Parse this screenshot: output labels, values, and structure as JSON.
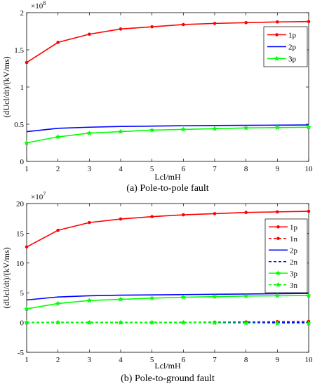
{
  "chart_data": [
    {
      "type": "line",
      "caption": "(a)  Pole-to-pole fault",
      "xlabel": "Lcl/mH",
      "ylabel": "(dUcl/dt)/(kV/ms)",
      "scale_base": "×10",
      "scale_exp": "8",
      "x": [
        1,
        2,
        3,
        4,
        5,
        6,
        7,
        8,
        9,
        10
      ],
      "xlim": [
        1,
        10
      ],
      "ylim": [
        0,
        2
      ],
      "xticks": [
        "1",
        "2",
        "3",
        "4",
        "5",
        "6",
        "7",
        "8",
        "9",
        "10"
      ],
      "yticks": [
        "0",
        "0.5",
        "1",
        "1.5",
        "2"
      ],
      "ytick_values": [
        0,
        0.5,
        1,
        1.5,
        2
      ],
      "grid": false,
      "legend_position": "top-right",
      "series": [
        {
          "name": "1p",
          "color": "#ff0000",
          "marker": "dot",
          "dash": "solid",
          "values": [
            1.33,
            1.6,
            1.71,
            1.78,
            1.81,
            1.84,
            1.855,
            1.865,
            1.875,
            1.88
          ]
        },
        {
          "name": "2p",
          "color": "#0000ff",
          "marker": "none",
          "dash": "solid",
          "values": [
            0.4,
            0.445,
            0.46,
            0.47,
            0.475,
            0.48,
            0.483,
            0.485,
            0.488,
            0.49
          ]
        },
        {
          "name": "3p",
          "color": "#00ff00",
          "marker": "star",
          "dash": "solid",
          "values": [
            0.25,
            0.33,
            0.38,
            0.4,
            0.42,
            0.43,
            0.44,
            0.45,
            0.455,
            0.46
          ]
        }
      ]
    },
    {
      "type": "line",
      "caption": "(b)  Pole-to-ground fault",
      "xlabel": "Lcl/mH",
      "ylabel": "(dUcl/dt)/(kV/ms)",
      "scale_base": "×10",
      "scale_exp": "7",
      "x": [
        1,
        2,
        3,
        4,
        5,
        6,
        7,
        8,
        9,
        10
      ],
      "xlim": [
        1,
        10
      ],
      "ylim": [
        -5,
        20
      ],
      "xticks": [
        "1",
        "2",
        "3",
        "4",
        "5",
        "6",
        "7",
        "8",
        "9",
        "10"
      ],
      "yticks": [
        "-5",
        "0",
        "5",
        "10",
        "15",
        "20"
      ],
      "ytick_values": [
        -5,
        0,
        5,
        10,
        15,
        20
      ],
      "grid": false,
      "legend_position": "top-right",
      "series": [
        {
          "name": "1p",
          "color": "#ff0000",
          "marker": "dot",
          "dash": "solid",
          "values": [
            12.7,
            15.5,
            16.8,
            17.4,
            17.8,
            18.1,
            18.3,
            18.5,
            18.6,
            18.7
          ]
        },
        {
          "name": "1n",
          "color": "#ff0000",
          "marker": "dot",
          "dash": "dashed",
          "values": [
            0,
            0,
            0,
            0,
            0,
            0,
            0.05,
            0.1,
            0.15,
            0.2
          ]
        },
        {
          "name": "2p",
          "color": "#0000ff",
          "marker": "none",
          "dash": "solid",
          "values": [
            3.8,
            4.3,
            4.5,
            4.6,
            4.65,
            4.7,
            4.75,
            4.8,
            4.85,
            4.9
          ]
        },
        {
          "name": "2n",
          "color": "#0000ff",
          "marker": "none",
          "dash": "dashed",
          "values": [
            0,
            0,
            0,
            0,
            0,
            0,
            0,
            0,
            0,
            0
          ]
        },
        {
          "name": "3p",
          "color": "#00ff00",
          "marker": "star",
          "dash": "solid",
          "values": [
            2.3,
            3.2,
            3.7,
            3.9,
            4.1,
            4.25,
            4.35,
            4.45,
            4.5,
            4.55
          ]
        },
        {
          "name": "3n",
          "color": "#00ff00",
          "marker": "star",
          "dash": "dashed",
          "values": [
            0,
            0,
            0,
            0,
            0,
            0,
            -0.05,
            -0.1,
            -0.15,
            -0.15
          ]
        }
      ]
    }
  ]
}
